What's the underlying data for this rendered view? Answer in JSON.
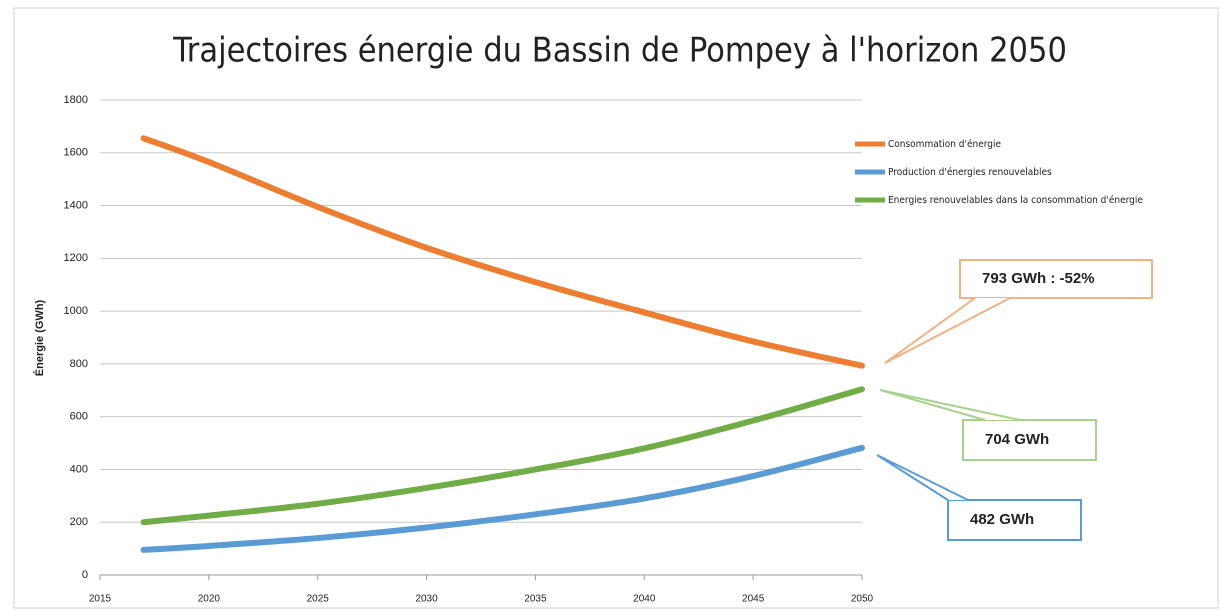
{
  "chart_data": {
    "type": "line",
    "title": "Trajectoires énergie du Bassin de Pompey à l'horizon 2050",
    "y_label": "Énergie (GWh)",
    "x": [
      2017,
      2020,
      2025,
      2030,
      2035,
      2040,
      2045,
      2050
    ],
    "series": [
      {
        "name": "Consommation d'énergie",
        "color": "#ed7d31",
        "values": [
          1655,
          1565,
          1395,
          1240,
          1110,
          995,
          885,
          793
        ]
      },
      {
        "name": "Production d'énergies renouvelables",
        "color": "#5b9bd5",
        "values": [
          95,
          110,
          140,
          180,
          230,
          290,
          375,
          482
        ]
      },
      {
        "name": "Energies renouvelables dans la consommation d'énergie",
        "color": "#70ad47",
        "values": [
          200,
          225,
          270,
          330,
          400,
          480,
          585,
          704
        ]
      }
    ],
    "xlim": [
      2015,
      2050
    ],
    "xticks": [
      2015,
      2020,
      2025,
      2030,
      2035,
      2040,
      2045,
      2050
    ],
    "ylim": [
      0,
      1800
    ],
    "yticks": [
      0,
      200,
      400,
      600,
      800,
      1000,
      1200,
      1400,
      1600,
      1800
    ],
    "grid": true,
    "legend": "right",
    "annotations": [
      {
        "text": "793 GWh : -52%",
        "color": "#f4b183"
      },
      {
        "text": "704 GWh",
        "color": "#a9d18e"
      },
      {
        "text": "482 GWh",
        "color": "#5b9bd5"
      }
    ]
  }
}
